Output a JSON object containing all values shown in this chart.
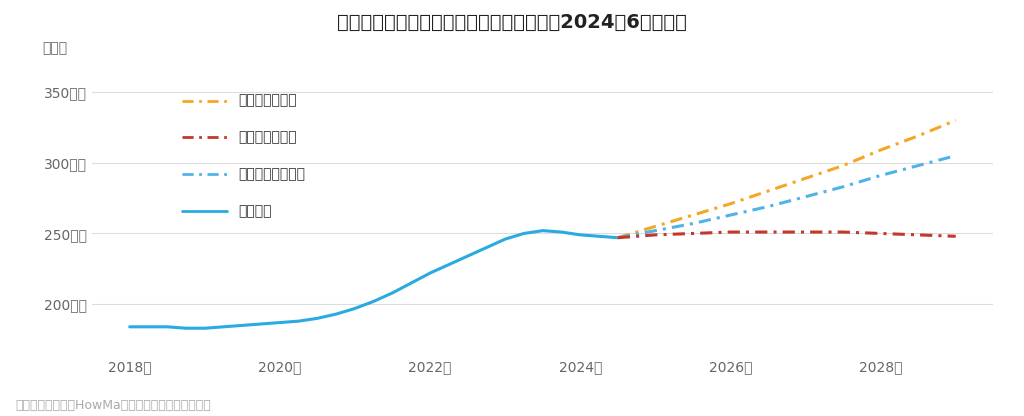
{
  "title": "大宮駅周辺の中古マンションの価格動向（2024年6月時点）",
  "ylabel": "坪単価",
  "footnote": "売出し事例を元にHowMa運営元のコラビットが集計",
  "background_color": "#ffffff",
  "plot_bg_color": "#ffffff",
  "grid_color": "#dddddd",
  "ylim": [
    168,
    368
  ],
  "yticks": [
    200,
    250,
    300,
    350
  ],
  "ytick_labels": [
    "200万円",
    "250万円",
    "300万円",
    "350万円"
  ],
  "xticks": [
    2018,
    2020,
    2022,
    2024,
    2026,
    2028
  ],
  "xtick_labels": [
    "2018年",
    "2020年",
    "2022年",
    "2024年",
    "2026年",
    "2028年"
  ],
  "past_x": [
    2018.0,
    2018.25,
    2018.5,
    2018.75,
    2019.0,
    2019.25,
    2019.5,
    2019.75,
    2020.0,
    2020.25,
    2020.5,
    2020.75,
    2021.0,
    2021.25,
    2021.5,
    2021.75,
    2022.0,
    2022.25,
    2022.5,
    2022.75,
    2023.0,
    2023.25,
    2023.5,
    2023.75,
    2024.0,
    2024.25,
    2024.5
  ],
  "past_y": [
    184,
    184,
    184,
    183,
    183,
    184,
    185,
    186,
    187,
    188,
    190,
    193,
    197,
    202,
    208,
    215,
    222,
    228,
    234,
    240,
    246,
    250,
    252,
    251,
    249,
    248,
    247
  ],
  "good_x": [
    2024.5,
    2025.0,
    2025.5,
    2026.0,
    2026.5,
    2027.0,
    2027.5,
    2028.0,
    2028.5,
    2029.0
  ],
  "good_y": [
    247,
    255,
    263,
    271,
    280,
    289,
    298,
    309,
    319,
    330
  ],
  "normal_x": [
    2024.5,
    2025.0,
    2025.5,
    2026.0,
    2026.5,
    2027.0,
    2027.5,
    2028.0,
    2028.5,
    2029.0
  ],
  "normal_y": [
    247,
    252,
    257,
    263,
    269,
    276,
    283,
    291,
    298,
    305
  ],
  "bad_x": [
    2024.5,
    2025.0,
    2025.5,
    2026.0,
    2026.5,
    2027.0,
    2027.5,
    2028.0,
    2028.5,
    2029.0
  ],
  "bad_y": [
    247,
    249,
    250,
    251,
    251,
    251,
    251,
    250,
    249,
    248
  ],
  "good_color": "#f5a623",
  "normal_color": "#4fb3e8",
  "bad_color": "#c0392b",
  "past_color": "#29aae1",
  "xlim": [
    2017.5,
    2029.5
  ]
}
